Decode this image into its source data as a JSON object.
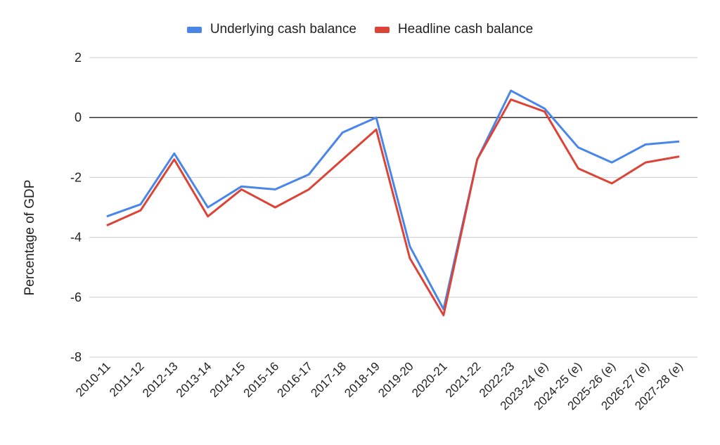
{
  "chart_data": {
    "type": "line",
    "title": "",
    "xlabel": "",
    "ylabel": "Percentage of GDP",
    "ylim": [
      -8,
      2
    ],
    "yticks": [
      2,
      0,
      -2,
      -4,
      -6,
      -8
    ],
    "ytick_labels": [
      "2",
      "0",
      "-2",
      "-4",
      "-6",
      "-8"
    ],
    "grid": true,
    "legend_position": "top-center",
    "categories": [
      "2010-11",
      "2011-12",
      "2012-13",
      "2013-14",
      "2014-15",
      "2015-16",
      "2016-17",
      "2017-18",
      "2018-19",
      "2019-20",
      "2020-21",
      "2021-22",
      "2022-23",
      "2023-24 (e)",
      "2024-25 (e)",
      "2025-26 (e)",
      "2026-27 (e)",
      "2027-28 (e)"
    ],
    "series": [
      {
        "name": "Underlying cash balance",
        "color": "#4a86e8",
        "values": [
          -3.3,
          -2.9,
          -1.2,
          -3.0,
          -2.3,
          -2.4,
          -1.9,
          -0.5,
          0.0,
          -4.3,
          -6.4,
          -1.4,
          0.9,
          0.3,
          -1.0,
          -1.5,
          -0.9,
          -0.8
        ]
      },
      {
        "name": "Headline cash balance",
        "color": "#db4437",
        "values": [
          -3.6,
          -3.1,
          -1.4,
          -3.3,
          -2.4,
          -3.0,
          -2.4,
          -1.4,
          -0.4,
          -4.7,
          -6.6,
          -1.4,
          0.6,
          0.2,
          -1.7,
          -2.2,
          -1.5,
          -1.3
        ]
      }
    ]
  }
}
